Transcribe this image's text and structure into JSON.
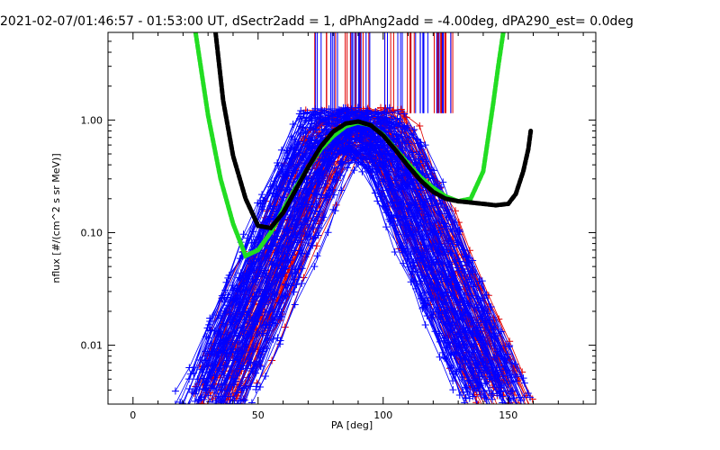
{
  "chart_data": {
    "type": "scatter",
    "title": "2021-02-07/01:46:57 - 01:53:00 UT, dSectr2add = 1, dPhAng2add = -4.00deg, dPA290_est=   0.0deg",
    "xlabel": "PA [deg]",
    "ylabel": "nflux [#/(cm^2 s sr MeV)]",
    "xlim": [
      -10,
      185
    ],
    "ylim": [
      0.003,
      6.0
    ],
    "yscale": "log",
    "xticks": [
      0,
      50,
      100,
      150
    ],
    "xtick_labels": [
      "0",
      "50",
      "100",
      "150"
    ],
    "yticks": [
      0.01,
      0.1,
      1.0
    ],
    "ytick_labels": [
      "0.01",
      "0.10",
      "1.00"
    ],
    "grid": false,
    "colors": {
      "red_series": "#e00000",
      "blue_series": "#0000ff",
      "green_fit": "#22dd22",
      "black_fit": "#000000",
      "axes": "#000000"
    },
    "fits": [
      {
        "color_key": "green_fit",
        "x": [
          25,
          30,
          35,
          40,
          45,
          50,
          55,
          60,
          65,
          70,
          75,
          80,
          85,
          90,
          95,
          100,
          105,
          110,
          115,
          120,
          125,
          130,
          135,
          140,
          142,
          144,
          146,
          148
        ],
        "y": [
          6.0,
          1.1,
          0.3,
          0.12,
          0.062,
          0.07,
          0.1,
          0.16,
          0.25,
          0.38,
          0.55,
          0.72,
          0.88,
          0.95,
          0.9,
          0.74,
          0.55,
          0.41,
          0.31,
          0.25,
          0.21,
          0.19,
          0.2,
          0.35,
          0.7,
          1.4,
          3.0,
          6.0
        ]
      },
      {
        "color_key": "black_fit",
        "x": [
          33,
          36,
          40,
          45,
          50,
          55,
          60,
          65,
          70,
          75,
          80,
          85,
          90,
          95,
          100,
          105,
          110,
          115,
          120,
          125,
          130,
          135,
          140,
          145,
          150,
          153,
          156,
          158,
          159
        ],
        "y": [
          6.0,
          1.5,
          0.48,
          0.2,
          0.115,
          0.11,
          0.15,
          0.24,
          0.38,
          0.58,
          0.79,
          0.93,
          0.97,
          0.9,
          0.73,
          0.54,
          0.39,
          0.29,
          0.23,
          0.2,
          0.19,
          0.185,
          0.18,
          0.175,
          0.18,
          0.22,
          0.35,
          0.55,
          0.8
        ]
      }
    ],
    "scatter_sample": [
      {
        "color_key": "blue_series",
        "x": [
          22,
          30,
          38,
          46,
          55,
          63,
          72,
          80,
          88,
          96,
          104,
          112,
          120,
          128,
          136,
          144,
          150,
          156,
          162,
          168
        ],
        "y": [
          0.01,
          0.02,
          0.04,
          0.08,
          0.16,
          0.3,
          0.55,
          0.8,
          0.95,
          0.9,
          0.7,
          0.45,
          0.25,
          0.12,
          0.06,
          0.03,
          0.015,
          0.009,
          0.006,
          0.004
        ]
      },
      {
        "color_key": "red_series",
        "x": [
          15,
          24,
          32,
          40,
          50,
          60,
          70,
          80,
          88,
          96,
          104,
          112,
          120,
          128,
          136,
          144,
          152
        ],
        "y": [
          0.004,
          0.008,
          0.015,
          0.03,
          0.07,
          0.15,
          0.35,
          0.65,
          0.85,
          0.82,
          0.6,
          0.35,
          0.17,
          0.08,
          0.035,
          0.015,
          0.006
        ]
      }
    ]
  }
}
